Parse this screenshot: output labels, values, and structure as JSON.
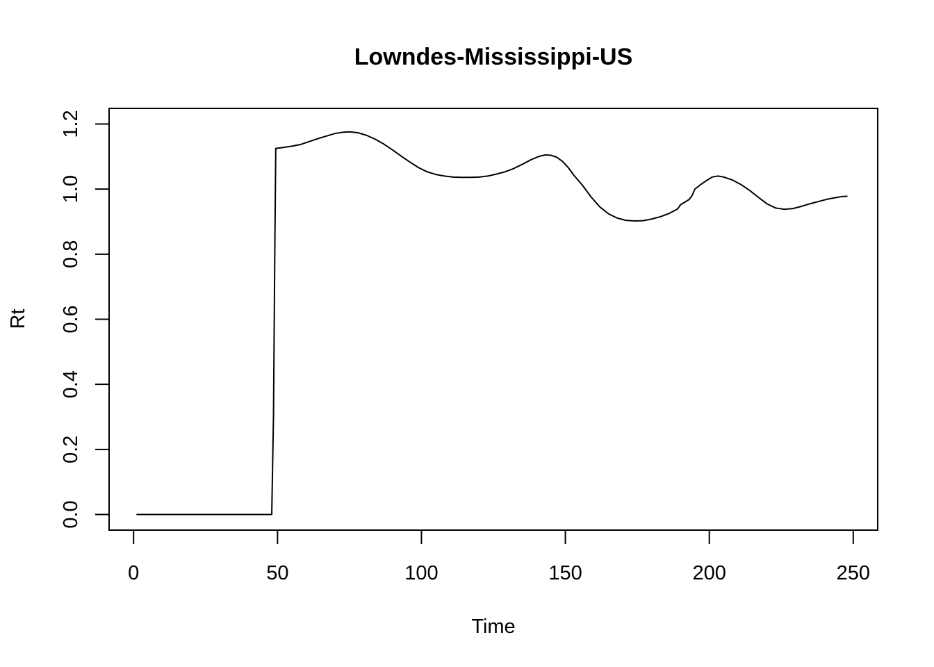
{
  "chart_data": {
    "type": "line",
    "title": "Lowndes-Mississippi-US",
    "xlabel": "Time",
    "ylabel": "Rt",
    "xlim": [
      -8.5,
      258.5
    ],
    "ylim": [
      -0.048,
      1.248
    ],
    "x_ticks": [
      "0",
      "50",
      "100",
      "150",
      "200",
      "250"
    ],
    "y_ticks": [
      "0.0",
      "0.2",
      "0.4",
      "0.6",
      "0.8",
      "1.0",
      "1.2"
    ],
    "grid": false,
    "series": [
      {
        "points": [
          [
            1,
            0.0
          ],
          [
            10,
            0.0
          ],
          [
            20,
            0.0
          ],
          [
            30,
            0.0
          ],
          [
            40,
            0.0
          ],
          [
            48,
            0.0
          ],
          [
            48.6,
            0.3
          ],
          [
            49.1,
            0.85
          ],
          [
            49.4,
            1.125
          ],
          [
            52,
            1.128
          ],
          [
            55,
            1.132
          ],
          [
            58,
            1.137
          ],
          [
            61,
            1.146
          ],
          [
            64,
            1.155
          ],
          [
            67,
            1.163
          ],
          [
            70,
            1.171
          ],
          [
            73,
            1.175
          ],
          [
            75,
            1.176
          ],
          [
            78,
            1.173
          ],
          [
            81,
            1.165
          ],
          [
            84,
            1.153
          ],
          [
            87,
            1.138
          ],
          [
            90,
            1.12
          ],
          [
            93,
            1.101
          ],
          [
            96,
            1.083
          ],
          [
            99,
            1.066
          ],
          [
            102,
            1.053
          ],
          [
            105,
            1.045
          ],
          [
            108,
            1.04
          ],
          [
            111,
            1.037
          ],
          [
            114,
            1.036
          ],
          [
            117,
            1.036
          ],
          [
            120,
            1.037
          ],
          [
            123,
            1.04
          ],
          [
            126,
            1.046
          ],
          [
            129,
            1.053
          ],
          [
            132,
            1.063
          ],
          [
            135,
            1.076
          ],
          [
            138,
            1.09
          ],
          [
            141,
            1.101
          ],
          [
            143,
            1.105
          ],
          [
            145,
            1.104
          ],
          [
            147,
            1.098
          ],
          [
            149,
            1.085
          ],
          [
            151,
            1.066
          ],
          [
            153,
            1.042
          ],
          [
            156,
            1.011
          ],
          [
            159,
            0.975
          ],
          [
            162,
            0.945
          ],
          [
            165,
            0.924
          ],
          [
            168,
            0.911
          ],
          [
            171,
            0.904
          ],
          [
            174,
            0.902
          ],
          [
            177,
            0.903
          ],
          [
            180,
            0.908
          ],
          [
            183,
            0.915
          ],
          [
            186,
            0.925
          ],
          [
            189,
            0.939
          ],
          [
            190,
            0.952
          ],
          [
            193,
            0.968
          ],
          [
            194,
            0.98
          ],
          [
            195,
            1.0
          ],
          [
            197,
            1.014
          ],
          [
            199,
            1.026
          ],
          [
            201,
            1.037
          ],
          [
            203,
            1.04
          ],
          [
            205,
            1.037
          ],
          [
            208,
            1.028
          ],
          [
            211,
            1.014
          ],
          [
            214,
            0.996
          ],
          [
            217,
            0.975
          ],
          [
            220,
            0.955
          ],
          [
            223,
            0.942
          ],
          [
            226,
            0.938
          ],
          [
            229,
            0.94
          ],
          [
            232,
            0.947
          ],
          [
            235,
            0.955
          ],
          [
            238,
            0.962
          ],
          [
            241,
            0.969
          ],
          [
            244,
            0.974
          ],
          [
            246,
            0.977
          ],
          [
            248,
            0.978
          ]
        ]
      }
    ]
  }
}
